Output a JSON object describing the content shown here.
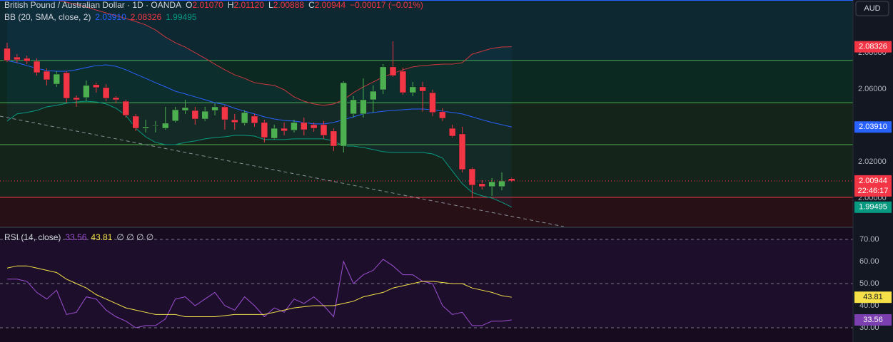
{
  "chart_data": [
    {
      "type": "candlestick",
      "title": "British Pound / Australian Dollar · 1D · OANDA",
      "ohlc": [
        {
          "label": "O",
          "value": "2.01070"
        },
        {
          "label": "H",
          "value": "2.01120"
        },
        {
          "label": "L",
          "value": "2.00888"
        },
        {
          "label": "C",
          "value": "2.00944"
        }
      ],
      "change": "−0.00017 (−0.01%)",
      "currency": "AUD",
      "countdown": "22:46:17",
      "up_color": "#4caf50",
      "down_color": "#f23645",
      "open": [
        2.0824,
        2.0776,
        2.0769,
        2.0753,
        2.0698,
        2.0627,
        2.069,
        2.0553,
        2.0553,
        2.0624,
        2.0608,
        2.0553,
        2.0533,
        2.0451,
        2.0384,
        2.0396,
        2.0384,
        2.0424,
        2.0482,
        2.0482,
        2.0435,
        2.0482,
        2.0502,
        2.0431,
        2.0412,
        2.0451,
        2.0416,
        2.0329,
        2.0384,
        2.0373,
        2.0416,
        2.0404,
        2.0404,
        2.0369,
        2.0286,
        2.0463,
        2.0463,
        2.0541,
        2.0596,
        2.0722,
        2.0698,
        2.058,
        2.0612,
        2.058,
        2.0475,
        2.0384,
        2.0353,
        2.0161,
        2.0079,
        2.0063,
        2.0063,
        2.0107
      ],
      "high": [
        2.0855,
        2.0792,
        2.0784,
        2.0769,
        2.0714,
        2.0698,
        2.0698,
        2.0565,
        2.0647,
        2.0635,
        2.0627,
        2.0561,
        2.0541,
        2.0463,
        2.0431,
        2.0424,
        2.0502,
        2.0502,
        2.0541,
        2.0502,
        2.0502,
        2.0522,
        2.051,
        2.0463,
        2.0482,
        2.0463,
        2.0431,
        2.0404,
        2.0416,
        2.0431,
        2.0443,
        2.0416,
        2.0424,
        2.0384,
        2.0643,
        2.0561,
        2.0659,
        2.062,
        2.0737,
        2.0863,
        2.0718,
        2.0639,
        2.0639,
        2.0596,
        2.0494,
        2.0404,
        2.0392,
        2.0169,
        2.0098,
        2.011,
        2.0141,
        2.0112
      ],
      "low": [
        2.0749,
        2.0745,
        2.0737,
        2.0674,
        2.062,
        2.0612,
        2.0525,
        2.0502,
        2.0533,
        2.058,
        2.0533,
        2.0522,
        2.0443,
        2.0368,
        2.0361,
        2.0361,
        2.0376,
        2.0416,
        2.0463,
        2.0404,
        2.0424,
        2.0455,
        2.0376,
        2.0376,
        2.04,
        2.0392,
        2.0306,
        2.0322,
        2.0345,
        2.0361,
        2.0345,
        2.0365,
        2.0326,
        2.0259,
        2.0251,
        2.0443,
        2.0443,
        2.0471,
        2.0573,
        2.0667,
        2.0569,
        2.0561,
        2.0475,
        2.0451,
        2.0424,
        2.0333,
        2.0141,
        1.9999,
        2.0047,
        2.0012,
        2.0043,
        2.00888
      ],
      "close": [
        2.0757,
        2.0761,
        2.0753,
        2.069,
        2.0651,
        2.0682,
        2.0549,
        2.0541,
        2.062,
        2.0608,
        2.0549,
        2.0541,
        2.0455,
        2.0384,
        2.0392,
        2.04,
        2.0412,
        2.0486,
        2.0498,
        2.0435,
        2.0478,
        2.0502,
        2.0431,
        2.0416,
        2.0471,
        2.0412,
        2.0333,
        2.0384,
        2.0369,
        2.0416,
        2.0376,
        2.0384,
        2.0345,
        2.0286,
        2.0635,
        2.0541,
        2.0541,
        2.0588,
        2.0722,
        2.0674,
        2.058,
        2.0612,
        2.0588,
        2.0471,
        2.0439,
        2.0341,
        2.0157,
        2.0071,
        2.0063,
        2.009,
        2.0094,
        2.00944
      ],
      "indicator": {
        "label": "BB (20, SMA, close, 2)",
        "legend_values": [
          "2.03910",
          "2.08326",
          "1.99495"
        ]
      },
      "series": [
        {
          "role": "basis",
          "color": "#2962ff",
          "values": [
            2.0757,
            2.0745,
            2.0729,
            2.0714,
            2.0702,
            2.0698,
            2.0698,
            2.0706,
            2.0718,
            2.0729,
            2.0733,
            2.0725,
            2.0706,
            2.0682,
            2.0659,
            2.0635,
            2.0612,
            2.0588,
            2.0573,
            2.0557,
            2.0541,
            2.0525,
            2.0514,
            2.0494,
            2.0478,
            2.0463,
            2.0447,
            2.0435,
            2.0427,
            2.0424,
            2.0416,
            2.0408,
            2.0408,
            2.0416,
            2.0431,
            2.0447,
            2.0463,
            2.0471,
            2.0478,
            2.0482,
            2.0486,
            2.049,
            2.049,
            2.0486,
            2.0478,
            2.0471,
            2.0463,
            2.0447,
            2.0431,
            2.0416,
            2.0404,
            2.0391
          ]
        },
        {
          "role": "upper",
          "color": "#c9383f",
          "values": [
            2.1129,
            2.1121,
            2.1114,
            2.1106,
            2.1098,
            2.109,
            2.1078,
            2.1066,
            2.1051,
            2.1035,
            2.1019,
            2.1004,
            2.0988,
            2.0972,
            2.0953,
            2.0925,
            2.0886,
            2.0855,
            2.0831,
            2.08,
            2.0769,
            2.0737,
            2.0706,
            2.0678,
            2.0659,
            2.0635,
            2.0627,
            2.062,
            2.0596,
            2.0557,
            2.0533,
            2.0518,
            2.051,
            2.0518,
            2.0541,
            2.058,
            2.0612,
            2.0639,
            2.0667,
            2.0686,
            2.0706,
            2.0722,
            2.0729,
            2.0733,
            2.0737,
            2.0737,
            2.0745,
            2.0792,
            2.0808,
            2.0824,
            2.0831,
            2.08326
          ]
        },
        {
          "role": "lower",
          "color": "#089981",
          "values": [
            2.0424,
            2.0463,
            2.0471,
            2.0482,
            2.0502,
            2.051,
            2.0522,
            2.0529,
            2.0533,
            2.0529,
            2.0518,
            2.0494,
            2.0455,
            2.0384,
            2.0337,
            2.0306,
            2.0294,
            2.0294,
            2.0306,
            2.0314,
            2.0326,
            2.0333,
            2.0337,
            2.0345,
            2.0345,
            2.0341,
            2.0322,
            2.0322,
            2.0322,
            2.0326,
            2.0326,
            2.0326,
            2.0326,
            2.0314,
            2.0286,
            2.0286,
            2.0278,
            2.0267,
            2.0255,
            2.0251,
            2.0251,
            2.0251,
            2.0251,
            2.0243,
            2.022,
            2.0149,
            2.0079,
            2.0031,
            2.0012,
            2.0,
            1.9977,
            1.99495
          ]
        }
      ],
      "levels": [
        {
          "value": 2.0757,
          "color": "#4caf50"
        },
        {
          "value": 2.0525,
          "color": "#4caf50"
        },
        {
          "value": 2.0294,
          "color": "#4caf50"
        },
        {
          "value": 2.0004,
          "color": "#f23645"
        }
      ],
      "ylim": [
        1.9843,
        2.109
      ],
      "yticks": [
        {
          "value": 2.08,
          "label": "2.08000"
        },
        {
          "value": 2.06,
          "label": "2.06000"
        },
        {
          "value": 2.04,
          "label": "2.04000"
        },
        {
          "value": 2.02,
          "label": "2.02000"
        },
        {
          "value": 2.0,
          "label": "2.00000"
        }
      ]
    },
    {
      "type": "line",
      "title": "RSI (14, close)",
      "empty_markers": "∅ ∅ ∅ ∅",
      "series": [
        {
          "role": "rsi",
          "color": "#9c4fd0",
          "values": [
            52,
            52,
            51,
            46,
            43,
            47,
            36,
            37,
            44,
            43,
            38,
            35,
            33,
            30,
            31,
            31,
            34,
            43,
            44,
            40,
            43,
            46,
            40,
            38,
            44,
            40,
            35,
            39,
            37,
            43,
            41,
            44,
            40,
            35,
            60,
            50,
            54,
            56,
            61,
            58,
            54,
            54,
            51,
            50,
            40,
            36,
            37,
            31,
            31,
            33,
            33,
            33.56
          ]
        },
        {
          "role": "rsi-ma",
          "color": "#f5e04a",
          "values": [
            57,
            58,
            58,
            57,
            56,
            55,
            52,
            50,
            48,
            45,
            43,
            41,
            39,
            38,
            37,
            36,
            36,
            36,
            35,
            35,
            35,
            35,
            35.5,
            36,
            36,
            36,
            36,
            37,
            38,
            39,
            39.5,
            40,
            40,
            40,
            41,
            42,
            44,
            45,
            46,
            48,
            49,
            50,
            51,
            51,
            50.5,
            50,
            50,
            48,
            47,
            46,
            44.5,
            43.81
          ]
        }
      ],
      "band_lines": [
        70,
        50,
        30
      ],
      "ylim": [
        23.55,
        75.16
      ],
      "yticks": [
        {
          "value": 70,
          "label": "70.00"
        },
        {
          "value": 60,
          "label": "60.00"
        },
        {
          "value": 50,
          "label": "50.00"
        },
        {
          "value": 40,
          "label": "40.00"
        },
        {
          "value": 30,
          "label": "30.00"
        }
      ]
    }
  ]
}
